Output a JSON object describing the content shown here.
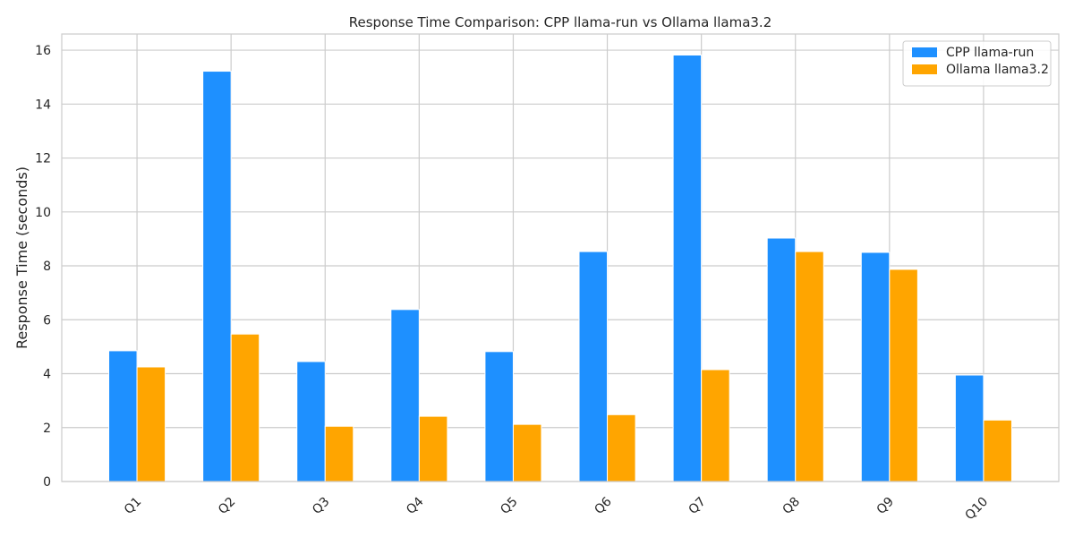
{
  "chart_data": {
    "type": "bar",
    "title": "Response Time Comparison: CPP llama-run vs Ollama llama3.2",
    "xlabel": "",
    "ylabel": "Response Time (seconds)",
    "categories": [
      "Q1",
      "Q2",
      "Q3",
      "Q4",
      "Q5",
      "Q6",
      "Q7",
      "Q8",
      "Q9",
      "Q10"
    ],
    "series": [
      {
        "name": "CPP llama-run",
        "color": "#1e90ff",
        "values": [
          4.85,
          15.22,
          4.45,
          6.38,
          4.82,
          8.53,
          15.82,
          9.03,
          8.5,
          3.95
        ]
      },
      {
        "name": "Ollama llama3.2",
        "color": "#ffa500",
        "values": [
          4.25,
          5.47,
          2.05,
          2.42,
          2.12,
          2.48,
          4.15,
          8.53,
          7.87,
          2.28
        ]
      }
    ],
    "ylim": [
      0,
      16.6
    ],
    "yticks": [
      0,
      2,
      4,
      6,
      8,
      10,
      12,
      14,
      16
    ],
    "grid": true,
    "legend_position": "top-right"
  }
}
